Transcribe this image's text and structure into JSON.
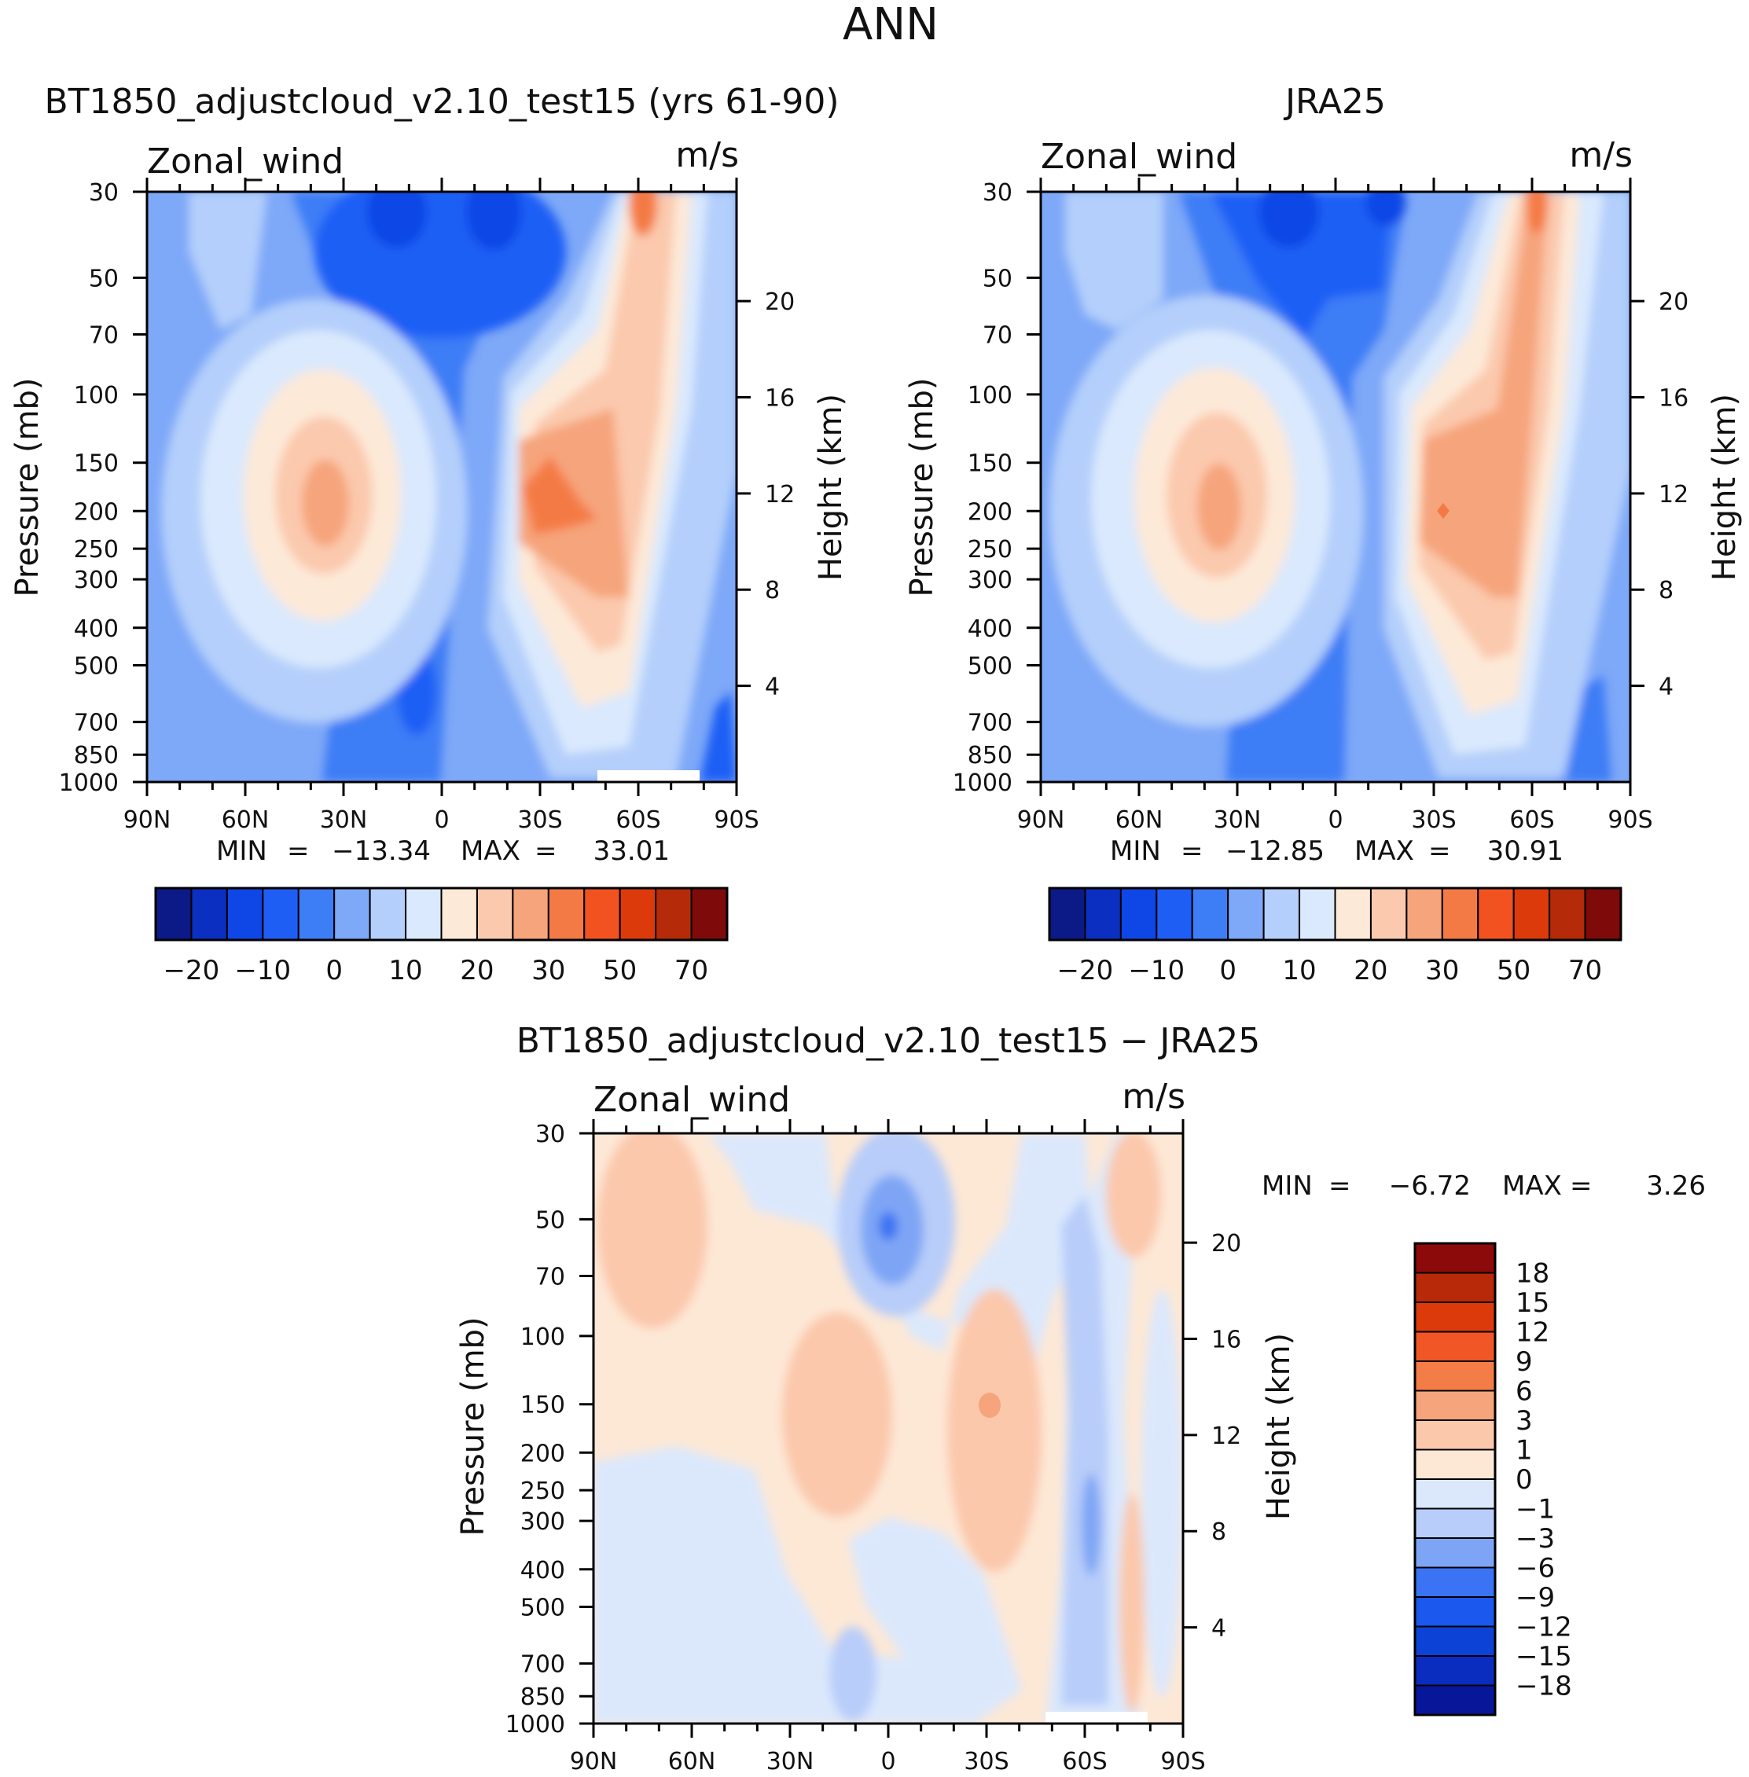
{
  "figure_title": "ANN",
  "colors": {
    "abs_palette": [
      "#0b1a86",
      "#0b2fc0",
      "#0f46e6",
      "#1f5ef5",
      "#3d7df6",
      "#7ea8f8",
      "#b4cffb",
      "#dae9fd",
      "#fde9d8",
      "#fbc9ad",
      "#f6a47c",
      "#f47a45",
      "#f1521f",
      "#dd3a0b",
      "#b52a08",
      "#7e0a0a"
    ],
    "diff_palette": [
      "#08169a",
      "#0b2dbf",
      "#0c42d6",
      "#1a58ee",
      "#3a73f3",
      "#7ea5f5",
      "#b8cdf9",
      "#dbe8fc",
      "#fde8d6",
      "#fbc8ac",
      "#f6a47c",
      "#f47c46",
      "#f15627",
      "#dd3a0b",
      "#b8290a",
      "#8c0a0a"
    ]
  },
  "chart_data": [
    {
      "type": "heatmap",
      "name": "model",
      "title": "BT1850_adjustcloud_v2.10_test15 (yrs 61-90)",
      "left_label": "Zonal_wind",
      "right_label": "m/s",
      "ylabel": "Pressure (mb)",
      "ylabel_right": "Height (km)",
      "xticks": [
        "90N",
        "60N",
        "30N",
        "0",
        "30S",
        "60S",
        "90S"
      ],
      "yticks": [
        "30",
        "50",
        "70",
        "100",
        "150",
        "200",
        "250",
        "300",
        "400",
        "500",
        "700",
        "850",
        "1000"
      ],
      "yticks_right": [
        "20",
        "16",
        "12",
        "8",
        "4"
      ],
      "stats": {
        "min_label": "MIN",
        "min": "−13.34",
        "max_label": "MAX",
        "max": "33.01"
      },
      "colorbar_labels": [
        "−20",
        "−10",
        "0",
        "10",
        "20",
        "30",
        "50",
        "70"
      ],
      "features": {
        "south_jet_max": 33.01,
        "north_jet_max": 24,
        "min": -13.34
      }
    },
    {
      "type": "heatmap",
      "name": "obs",
      "title": "JRA25",
      "left_label": "Zonal_wind",
      "right_label": "m/s",
      "ylabel": "Pressure (mb)",
      "ylabel_right": "Height (km)",
      "xticks": [
        "90N",
        "60N",
        "30N",
        "0",
        "30S",
        "60S",
        "90S"
      ],
      "yticks": [
        "30",
        "50",
        "70",
        "100",
        "150",
        "200",
        "250",
        "300",
        "400",
        "500",
        "700",
        "850",
        "1000"
      ],
      "yticks_right": [
        "20",
        "16",
        "12",
        "8",
        "4"
      ],
      "stats": {
        "min_label": "MIN",
        "min": "−12.85",
        "max_label": "MAX",
        "max": "30.91"
      },
      "colorbar_labels": [
        "−20",
        "−10",
        "0",
        "10",
        "20",
        "30",
        "50",
        "70"
      ],
      "features": {
        "south_jet_max": 30.91,
        "north_jet_max": 24,
        "min": -12.85
      }
    },
    {
      "type": "heatmap",
      "name": "diff",
      "title": "BT1850_adjustcloud_v2.10_test15 − JRA25",
      "left_label": "Zonal_wind",
      "right_label": "m/s",
      "ylabel": "Pressure (mb)",
      "ylabel_right": "Height (km)",
      "xticks": [
        "90N",
        "60N",
        "30N",
        "0",
        "30S",
        "60S",
        "90S"
      ],
      "yticks": [
        "30",
        "50",
        "70",
        "100",
        "150",
        "200",
        "250",
        "300",
        "400",
        "500",
        "700",
        "850",
        "1000"
      ],
      "yticks_right": [
        "20",
        "16",
        "12",
        "8",
        "4"
      ],
      "stats": {
        "min_label": "MIN",
        "min": "−6.72",
        "max_label": "MAX",
        "max": "3.26"
      },
      "colorbar_labels": [
        "18",
        "15",
        "12",
        "9",
        "6",
        "3",
        "1",
        "0",
        "−1",
        "−3",
        "−6",
        "−9",
        "−12",
        "−15",
        "−18"
      ],
      "features": {
        "min": -6.72,
        "max": 3.26
      }
    }
  ]
}
